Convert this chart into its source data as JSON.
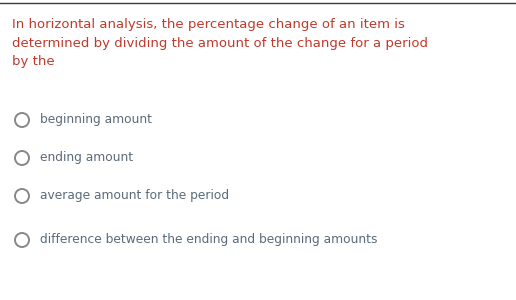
{
  "question_text": "In horizontal analysis, the percentage change of an item is\ndetermined by dividing the amount of the change for a period\nby the",
  "options": [
    "beginning amount",
    "ending amount",
    "average amount for the period",
    "difference between the ending and beginning amounts"
  ],
  "question_color": "#c0392b",
  "option_color": "#5b6a7a",
  "background_color": "#ffffff",
  "question_fontsize": 9.5,
  "option_fontsize": 8.8,
  "top_border_color": "#3a3a3a",
  "circle_color": "#888888",
  "circle_linewidth": 1.4
}
